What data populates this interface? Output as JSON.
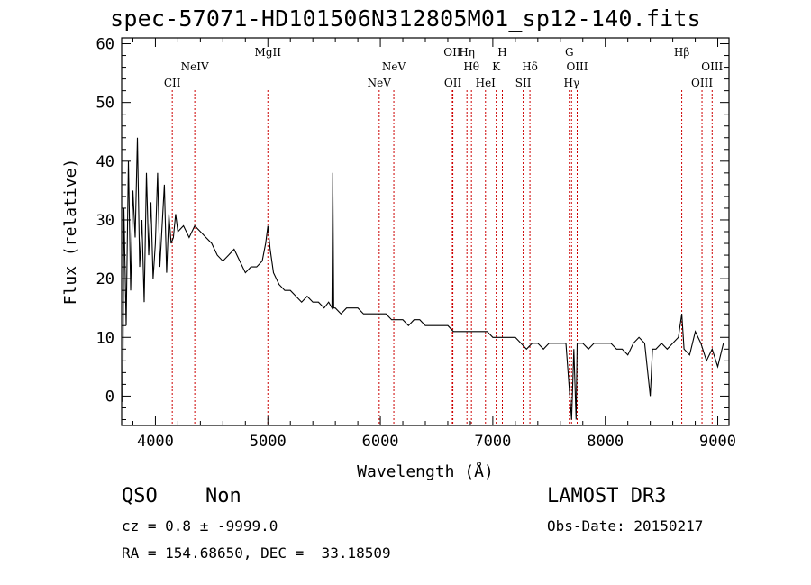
{
  "title": "spec-57071-HD101506N312805M01_sp12-140.fits",
  "info": {
    "class": "QSO",
    "subclass": "Non",
    "cz": "cz = 0.8 ± -9999.0",
    "survey": "LAMOST DR3",
    "obs_date": "Obs-Date: 20150217",
    "radec": "RA = 154.68650, DEC =  33.18509"
  },
  "colors": {
    "spectrum": "#000000",
    "line_marker": "#cc0000",
    "axes": "#000000"
  },
  "chart_data": {
    "type": "line",
    "title": "spec-57071-HD101506N312805M01_sp12-140.fits",
    "xlabel": "Wavelength (Å)",
    "ylabel": "Flux (relative)",
    "xlim": [
      3700,
      9100
    ],
    "ylim": [
      -5,
      61
    ],
    "xticks": [
      4000,
      5000,
      6000,
      7000,
      8000,
      9000
    ],
    "yticks": [
      0,
      10,
      20,
      30,
      40,
      50,
      60
    ],
    "grid": false,
    "series": [
      {
        "name": "flux",
        "x": [
          3710,
          3720,
          3740,
          3760,
          3780,
          3800,
          3820,
          3840,
          3860,
          3880,
          3900,
          3920,
          3940,
          3960,
          3980,
          4000,
          4020,
          4040,
          4060,
          4080,
          4100,
          4120,
          4140,
          4160,
          4180,
          4200,
          4250,
          4300,
          4350,
          4400,
          4450,
          4500,
          4550,
          4600,
          4650,
          4700,
          4750,
          4800,
          4850,
          4900,
          4950,
          4980,
          5000,
          5020,
          5050,
          5100,
          5150,
          5200,
          5250,
          5300,
          5350,
          5400,
          5450,
          5500,
          5540,
          5570,
          5577,
          5585,
          5600,
          5650,
          5700,
          5750,
          5800,
          5850,
          5900,
          5950,
          6000,
          6050,
          6100,
          6150,
          6200,
          6250,
          6300,
          6350,
          6400,
          6450,
          6500,
          6550,
          6600,
          6650,
          6700,
          6750,
          6800,
          6850,
          6900,
          6950,
          7000,
          7050,
          7100,
          7150,
          7200,
          7250,
          7300,
          7350,
          7400,
          7450,
          7500,
          7550,
          7600,
          7650,
          7700,
          7720,
          7740,
          7750,
          7800,
          7850,
          7900,
          7950,
          8000,
          8050,
          8100,
          8150,
          8200,
          8250,
          8300,
          8350,
          8400,
          8420,
          8450,
          8500,
          8550,
          8600,
          8650,
          8680,
          8700,
          8750,
          8800,
          8850,
          8900,
          8950,
          9000,
          9050
        ],
        "y": [
          -1,
          32,
          12,
          40,
          18,
          35,
          27,
          44,
          22,
          30,
          16,
          38,
          24,
          33,
          20,
          26,
          38,
          22,
          29,
          36,
          21,
          31,
          26,
          27,
          31,
          28,
          29,
          27,
          29,
          28,
          27,
          26,
          24,
          23,
          24,
          25,
          23,
          21,
          22,
          22,
          23,
          26,
          29,
          25,
          21,
          19,
          18,
          18,
          17,
          16,
          17,
          16,
          16,
          15,
          16,
          15,
          38,
          15,
          15,
          14,
          15,
          15,
          15,
          14,
          14,
          14,
          14,
          14,
          13,
          13,
          13,
          12,
          13,
          13,
          12,
          12,
          12,
          12,
          12,
          11,
          11,
          11,
          11,
          11,
          11,
          11,
          10,
          10,
          10,
          10,
          10,
          9,
          8,
          9,
          9,
          8,
          9,
          9,
          9,
          9,
          -4,
          8,
          -4,
          9,
          9,
          8,
          9,
          9,
          9,
          9,
          8,
          8,
          7,
          9,
          10,
          9,
          0,
          8,
          8,
          9,
          8,
          9,
          10,
          14,
          8,
          7,
          11,
          9,
          6,
          8,
          5,
          9
        ]
      }
    ],
    "line_markers": [
      {
        "label": "CII",
        "wavelength": 4150,
        "row": 3
      },
      {
        "label": "NeIV",
        "wavelength": 4350,
        "row": 2
      },
      {
        "label": "MgII",
        "wavelength": 5000,
        "row": 1
      },
      {
        "label": "NeV",
        "wavelength": 5990,
        "row": 3
      },
      {
        "label": "NeV",
        "wavelength": 6120,
        "row": 2
      },
      {
        "label": "OII",
        "wavelength": 6640,
        "row": 1
      },
      {
        "label": "OII",
        "wavelength": 6645,
        "row": 3
      },
      {
        "label": "Hη",
        "wavelength": 6770,
        "row": 1
      },
      {
        "label": "Hθ",
        "wavelength": 6810,
        "row": 2
      },
      {
        "label": "HeI",
        "wavelength": 6935,
        "row": 3
      },
      {
        "label": "K",
        "wavelength": 7030,
        "row": 2
      },
      {
        "label": "H",
        "wavelength": 7085,
        "row": 1
      },
      {
        "label": "Hδ",
        "wavelength": 7330,
        "row": 2
      },
      {
        "label": "SII",
        "wavelength": 7270,
        "row": 3
      },
      {
        "label": "G",
        "wavelength": 7680,
        "row": 1
      },
      {
        "label": "OIII",
        "wavelength": 7750,
        "row": 2
      },
      {
        "label": "Hγ",
        "wavelength": 7700,
        "row": 3
      },
      {
        "label": "Hβ",
        "wavelength": 8680,
        "row": 1
      },
      {
        "label": "OIII",
        "wavelength": 8950,
        "row": 2
      },
      {
        "label": "OIII",
        "wavelength": 8860,
        "row": 3
      }
    ]
  }
}
